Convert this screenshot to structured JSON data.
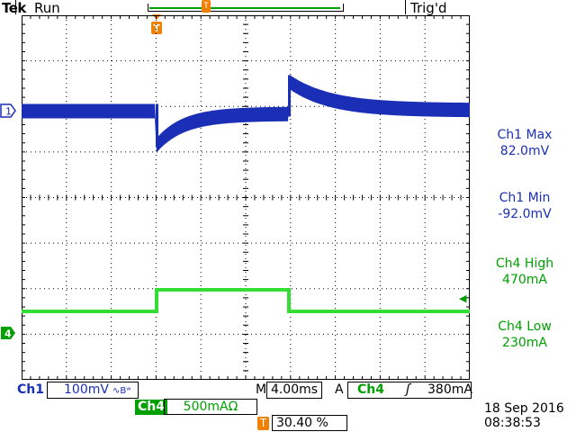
{
  "header": {
    "brand": "Tek",
    "status": "Run",
    "trigger_state": "Trig'd"
  },
  "markers": {
    "ch1_label": "1",
    "ch4_label": "4",
    "trigger_pos_label": "T",
    "trigger_level_arrow": "◀"
  },
  "measurements": [
    {
      "label": "Ch1 Max",
      "value": "82.0mV"
    },
    {
      "label": "Ch1 Min",
      "value": "-92.0mV"
    },
    {
      "label": "Ch4 High",
      "value": "470mA"
    },
    {
      "label": "Ch4 Low",
      "value": "230mA"
    }
  ],
  "footer": {
    "ch1_name": "Ch1",
    "ch1_scale": "100mV",
    "ch1_coupling_icon": "∿Bʷ",
    "timebase_prefix": "M",
    "timebase": "4.00ms",
    "trigger_mode": "A",
    "trigger_source": "Ch4",
    "trigger_slope_icon": "rising-edge-icon",
    "trigger_slope_glyph": "ʃ",
    "trigger_level": "380mA",
    "ch4_name": "Ch4",
    "ch4_scale": "500mAΩ",
    "trigger_pos_label": "T",
    "trigger_position": "30.40 %",
    "date": "18 Sep  2016",
    "time": "08:38:53"
  },
  "colors": {
    "ch1": "#1a2fb5",
    "ch4": "#33dd33",
    "trigger": "#f08000"
  }
}
